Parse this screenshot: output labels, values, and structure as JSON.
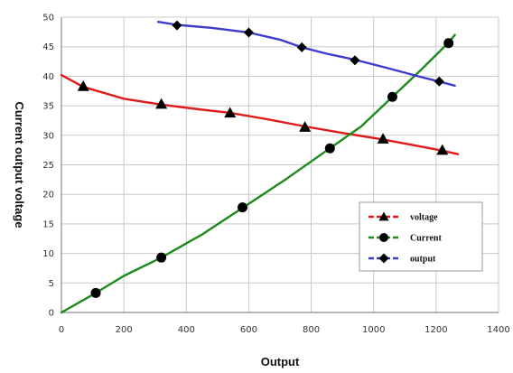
{
  "chart_data": {
    "type": "line",
    "title": "",
    "xlabel": "Output",
    "ylabel": "Current output voltage",
    "xlim": [
      0,
      1400
    ],
    "ylim": [
      0,
      50
    ],
    "xticks": [
      0,
      200,
      400,
      600,
      800,
      1000,
      1200,
      1400
    ],
    "yticks": [
      0,
      5,
      10,
      15,
      20,
      25,
      30,
      35,
      40,
      45,
      50
    ],
    "grid": true,
    "legend_position": "lower-right",
    "series": [
      {
        "name": "voltage",
        "color": "#e01a1a",
        "marker": "triangle",
        "line": [
          [
            0,
            40.2
          ],
          [
            70,
            38.2
          ],
          [
            200,
            36.2
          ],
          [
            320,
            35.2
          ],
          [
            440,
            34.4
          ],
          [
            540,
            33.8
          ],
          [
            660,
            32.7
          ],
          [
            780,
            31.5
          ],
          [
            900,
            30.4
          ],
          [
            1030,
            29.3
          ],
          [
            1150,
            28.1
          ],
          [
            1220,
            27.4
          ],
          [
            1270,
            26.8
          ]
        ],
        "markers": [
          [
            70,
            38.3
          ],
          [
            320,
            35.3
          ],
          [
            540,
            33.8
          ],
          [
            780,
            31.4
          ],
          [
            1030,
            29.4
          ],
          [
            1220,
            27.5
          ]
        ]
      },
      {
        "name": "Current",
        "color": "#1c8a1c",
        "marker": "circle",
        "line": [
          [
            0,
            0
          ],
          [
            110,
            3.3
          ],
          [
            200,
            6.2
          ],
          [
            320,
            9.3
          ],
          [
            450,
            13.2
          ],
          [
            580,
            17.7
          ],
          [
            720,
            22.6
          ],
          [
            860,
            27.8
          ],
          [
            960,
            31.5
          ],
          [
            1060,
            36.5
          ],
          [
            1150,
            41.0
          ],
          [
            1240,
            45.7
          ],
          [
            1260,
            47.0
          ]
        ],
        "markers": [
          [
            110,
            3.3
          ],
          [
            320,
            9.3
          ],
          [
            580,
            17.8
          ],
          [
            860,
            27.8
          ],
          [
            1060,
            36.5
          ],
          [
            1240,
            45.6
          ]
        ]
      },
      {
        "name": "output",
        "color": "#3a3acc",
        "marker": "diamond",
        "line": [
          [
            310,
            49.2
          ],
          [
            370,
            48.7
          ],
          [
            480,
            48.2
          ],
          [
            600,
            47.4
          ],
          [
            700,
            46.2
          ],
          [
            770,
            44.9
          ],
          [
            850,
            43.8
          ],
          [
            940,
            42.8
          ],
          [
            1050,
            41.3
          ],
          [
            1150,
            39.9
          ],
          [
            1210,
            39.1
          ],
          [
            1260,
            38.4
          ]
        ],
        "markers": [
          [
            370,
            48.6
          ],
          [
            600,
            47.4
          ],
          [
            770,
            44.9
          ],
          [
            940,
            42.7
          ],
          [
            1210,
            39.1
          ]
        ]
      }
    ]
  },
  "colors": {
    "background": "#ffffff",
    "grid": "#c8c8c8",
    "axis": "#8c8c8c",
    "marker": "#000000"
  }
}
